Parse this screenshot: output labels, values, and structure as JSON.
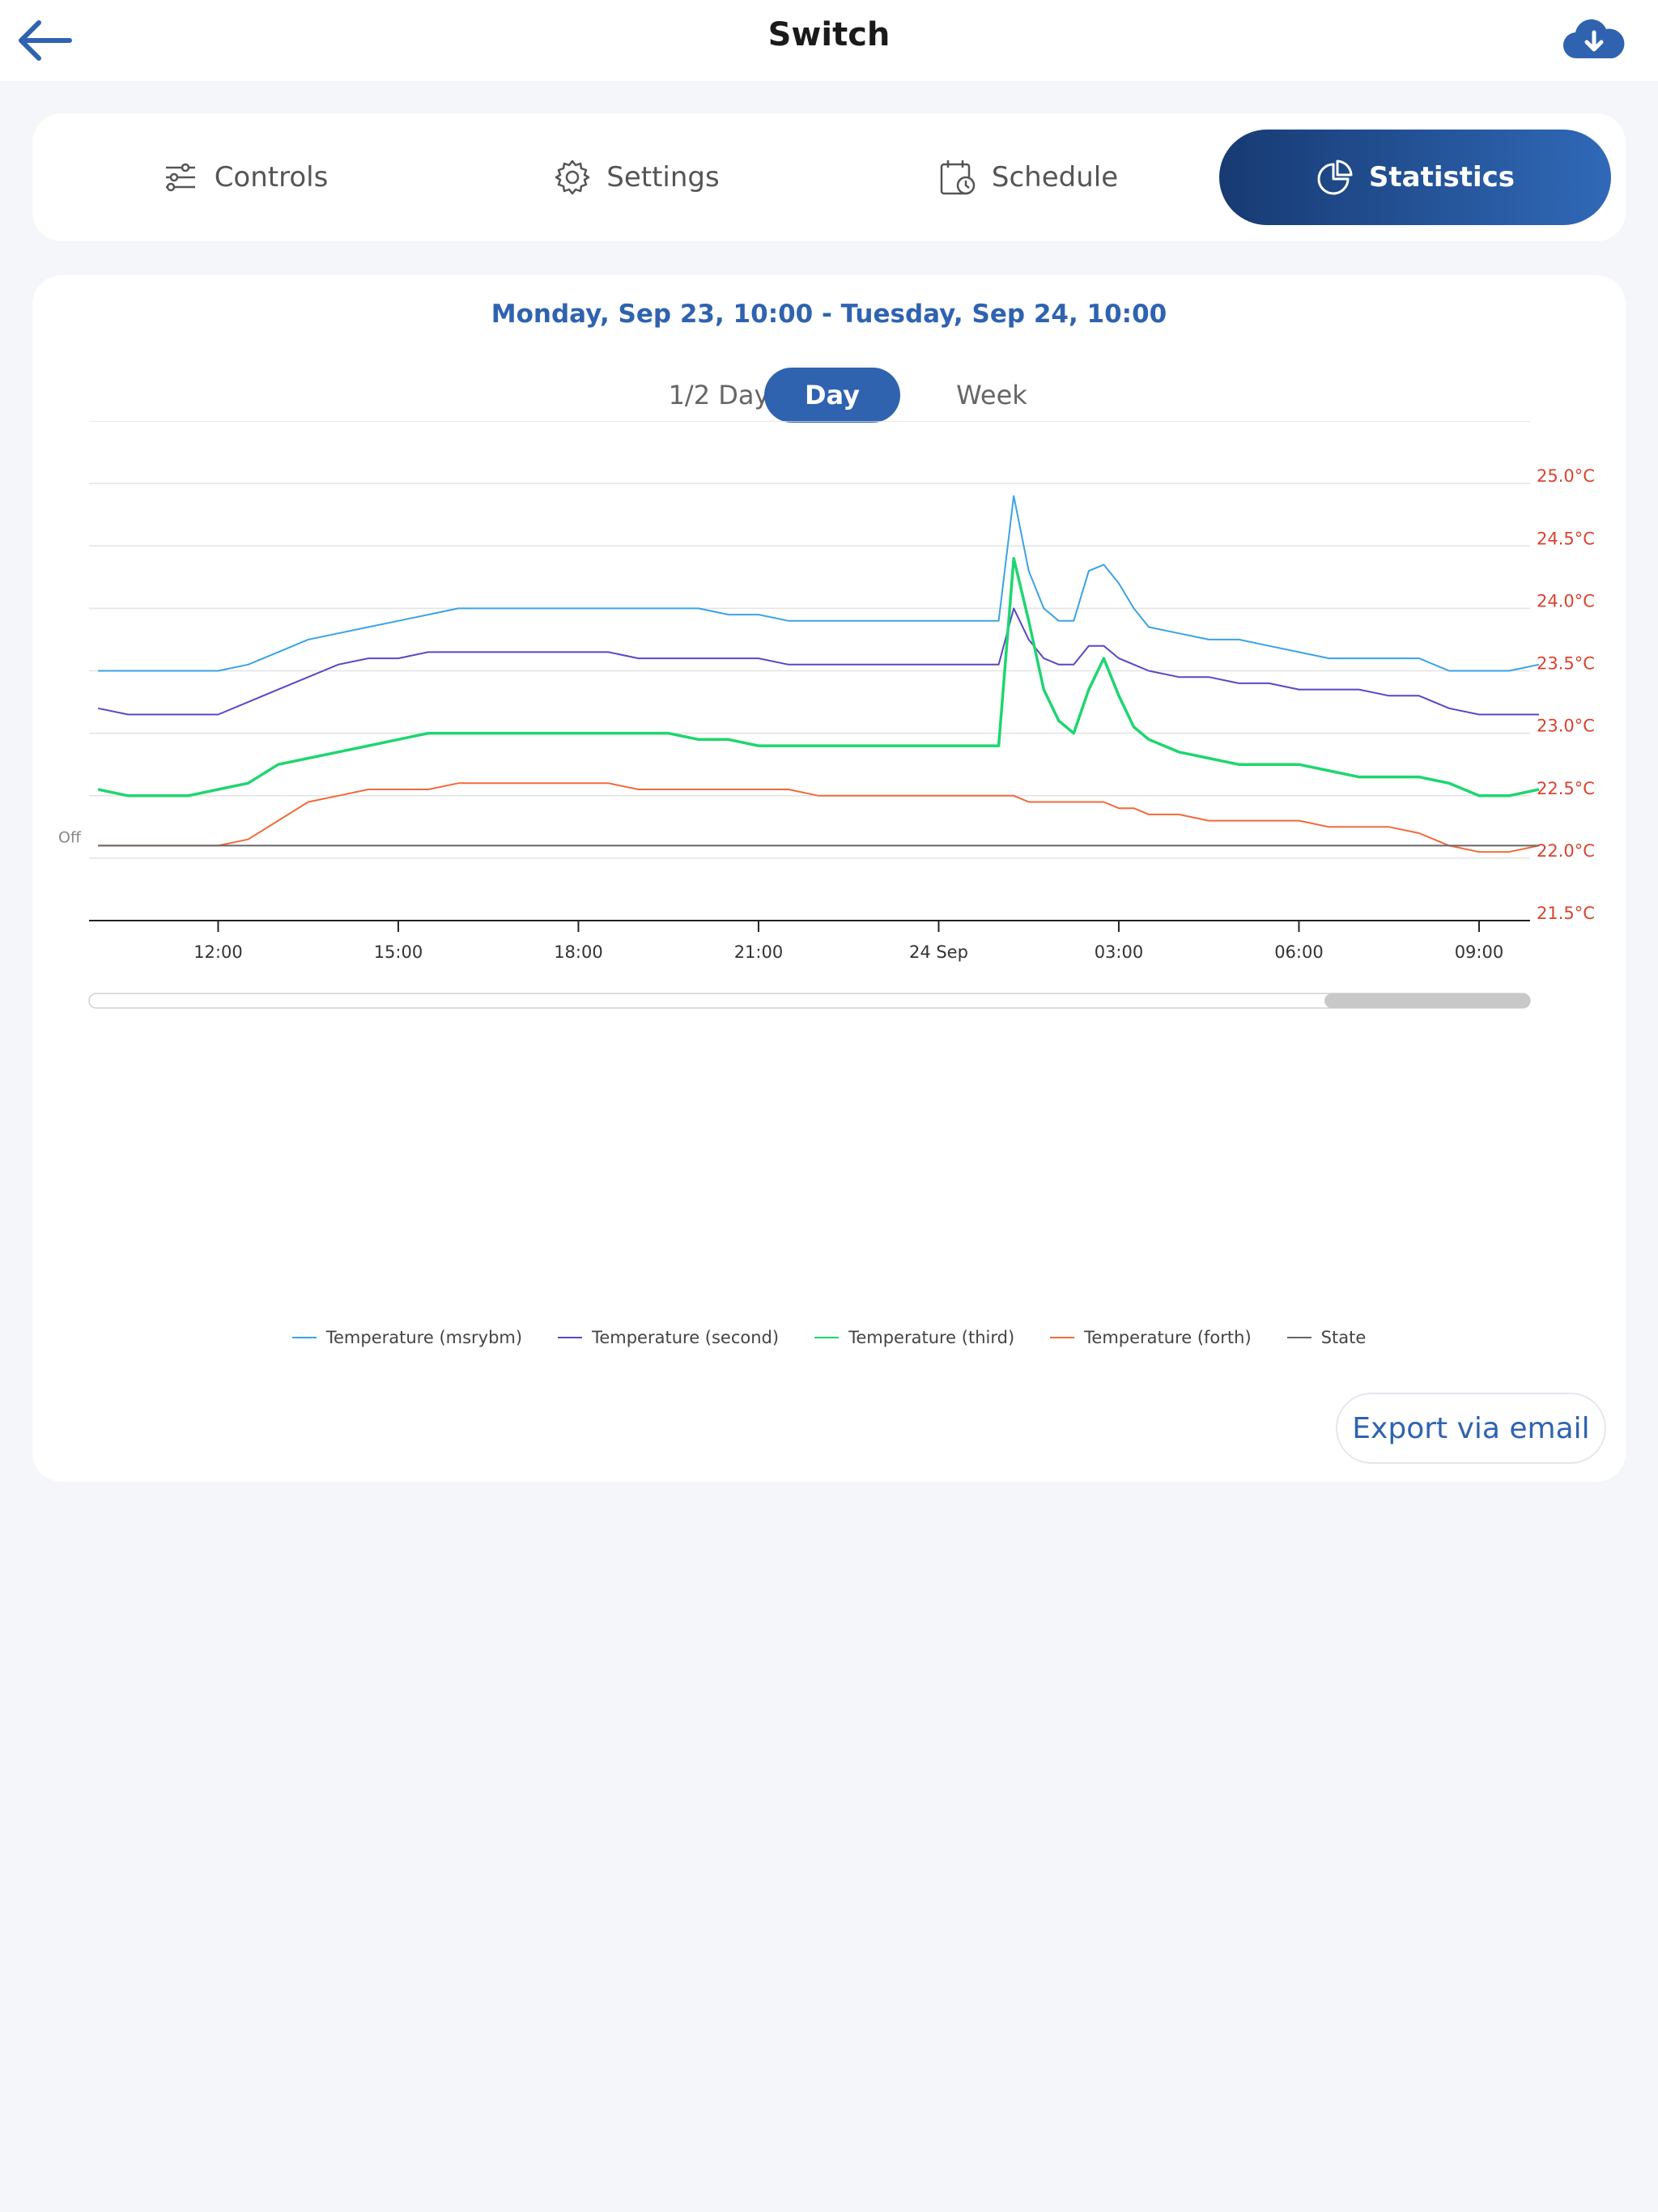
{
  "header": {
    "title": "Switch",
    "back_icon": "arrow-left-icon",
    "cloud_icon": "cloud-download-icon"
  },
  "tabs": [
    {
      "label": "Controls",
      "icon": "sliders-icon",
      "active": false
    },
    {
      "label": "Settings",
      "icon": "gear-icon",
      "active": false
    },
    {
      "label": "Schedule",
      "icon": "calendar-clock-icon",
      "active": false
    },
    {
      "label": "Statistics",
      "icon": "pie-chart-icon",
      "active": true
    }
  ],
  "date_range": "Monday, Sep 23, 10:00 - Tuesday, Sep 24, 10:00",
  "periods": [
    {
      "label": "1/2 Day",
      "active": false
    },
    {
      "label": "Day",
      "active": true
    },
    {
      "label": "Week",
      "active": false
    }
  ],
  "export_label": "Export via email",
  "colors": {
    "accent": "#2f63b0",
    "axis_label": "#d9432f"
  },
  "chart_data": {
    "type": "line",
    "x": [
      10,
      10.5,
      11,
      11.5,
      12,
      12.5,
      13,
      13.5,
      14,
      14.5,
      15,
      15.5,
      16,
      16.5,
      17,
      17.5,
      18,
      18.5,
      19,
      19.5,
      20,
      20.5,
      21,
      21.5,
      22,
      22.5,
      23,
      23.5,
      24,
      24.5,
      25,
      25.25,
      25.5,
      25.75,
      26,
      26.25,
      26.5,
      26.75,
      27,
      27.25,
      27.5,
      28,
      28.5,
      29,
      29.5,
      30,
      30.5,
      31,
      31.5,
      32,
      32.5,
      33,
      33.5,
      34
    ],
    "x_ticks": [
      {
        "x": 12,
        "label": "12:00"
      },
      {
        "x": 15,
        "label": "15:00"
      },
      {
        "x": 18,
        "label": "18:00"
      },
      {
        "x": 21,
        "label": "21:00"
      },
      {
        "x": 24,
        "label": "24 Sep"
      },
      {
        "x": 27,
        "label": "03:00"
      },
      {
        "x": 30,
        "label": "06:00"
      },
      {
        "x": 33,
        "label": "09:00"
      }
    ],
    "xlim": [
      9.85,
      33.85
    ],
    "y_ticks": [
      "21.5°C",
      "22.0°C",
      "22.5°C",
      "23.0°C",
      "23.5°C",
      "24.0°C",
      "24.5°C",
      "25.0°C"
    ],
    "y_tick_values": [
      21.5,
      22.0,
      22.5,
      23.0,
      23.5,
      24.0,
      24.5,
      25.0
    ],
    "ylim": [
      21.5,
      25.5
    ],
    "state_label": "Off",
    "state_value": 22.1,
    "series": [
      {
        "name": "Temperature (msrybm)",
        "color": "#3aa3e3",
        "values": [
          23.5,
          23.5,
          23.5,
          23.5,
          23.5,
          23.55,
          23.65,
          23.75,
          23.8,
          23.85,
          23.9,
          23.95,
          24.0,
          24.0,
          24.0,
          24.0,
          24.0,
          24.0,
          24.0,
          24.0,
          24.0,
          23.95,
          23.95,
          23.9,
          23.9,
          23.9,
          23.9,
          23.9,
          23.9,
          23.9,
          23.9,
          24.9,
          24.3,
          24.0,
          23.9,
          23.9,
          24.3,
          24.35,
          24.2,
          24.0,
          23.85,
          23.8,
          23.75,
          23.75,
          23.7,
          23.65,
          23.6,
          23.6,
          23.6,
          23.6,
          23.5,
          23.5,
          23.5,
          23.55
        ]
      },
      {
        "name": "Temperature (second)",
        "color": "#5b47c4",
        "values": [
          23.2,
          23.15,
          23.15,
          23.15,
          23.15,
          23.25,
          23.35,
          23.45,
          23.55,
          23.6,
          23.6,
          23.65,
          23.65,
          23.65,
          23.65,
          23.65,
          23.65,
          23.65,
          23.6,
          23.6,
          23.6,
          23.6,
          23.6,
          23.55,
          23.55,
          23.55,
          23.55,
          23.55,
          23.55,
          23.55,
          23.55,
          24.0,
          23.75,
          23.6,
          23.55,
          23.55,
          23.7,
          23.7,
          23.6,
          23.55,
          23.5,
          23.45,
          23.45,
          23.4,
          23.4,
          23.35,
          23.35,
          23.35,
          23.3,
          23.3,
          23.2,
          23.15,
          23.15,
          23.15
        ]
      },
      {
        "name": "Temperature (third)",
        "color": "#1ed66f",
        "values": [
          22.55,
          22.5,
          22.5,
          22.5,
          22.55,
          22.6,
          22.75,
          22.8,
          22.85,
          22.9,
          22.95,
          23.0,
          23.0,
          23.0,
          23.0,
          23.0,
          23.0,
          23.0,
          23.0,
          23.0,
          22.95,
          22.95,
          22.9,
          22.9,
          22.9,
          22.9,
          22.9,
          22.9,
          22.9,
          22.9,
          22.9,
          24.4,
          23.9,
          23.35,
          23.1,
          23.0,
          23.35,
          23.6,
          23.3,
          23.05,
          22.95,
          22.85,
          22.8,
          22.75,
          22.75,
          22.75,
          22.7,
          22.65,
          22.65,
          22.65,
          22.6,
          22.5,
          22.5,
          22.55
        ]
      },
      {
        "name": "Temperature (forth)",
        "color": "#f06a3c",
        "values": [
          22.1,
          22.1,
          22.1,
          22.1,
          22.1,
          22.15,
          22.3,
          22.45,
          22.5,
          22.55,
          22.55,
          22.55,
          22.6,
          22.6,
          22.6,
          22.6,
          22.6,
          22.6,
          22.55,
          22.55,
          22.55,
          22.55,
          22.55,
          22.55,
          22.5,
          22.5,
          22.5,
          22.5,
          22.5,
          22.5,
          22.5,
          22.5,
          22.45,
          22.45,
          22.45,
          22.45,
          22.45,
          22.45,
          22.4,
          22.4,
          22.35,
          22.35,
          22.3,
          22.3,
          22.3,
          22.3,
          22.25,
          22.25,
          22.25,
          22.2,
          22.1,
          22.05,
          22.05,
          22.1
        ]
      },
      {
        "name": "State",
        "color": "#666666",
        "values": [
          22.1,
          22.1,
          22.1,
          22.1,
          22.1,
          22.1,
          22.1,
          22.1,
          22.1,
          22.1,
          22.1,
          22.1,
          22.1,
          22.1,
          22.1,
          22.1,
          22.1,
          22.1,
          22.1,
          22.1,
          22.1,
          22.1,
          22.1,
          22.1,
          22.1,
          22.1,
          22.1,
          22.1,
          22.1,
          22.1,
          22.1,
          22.1,
          22.1,
          22.1,
          22.1,
          22.1,
          22.1,
          22.1,
          22.1,
          22.1,
          22.1,
          22.1,
          22.1,
          22.1,
          22.1,
          22.1,
          22.1,
          22.1,
          22.1,
          22.1,
          22.1,
          22.1,
          22.1,
          22.1
        ]
      }
    ],
    "grid": true,
    "legend": "bottom"
  }
}
